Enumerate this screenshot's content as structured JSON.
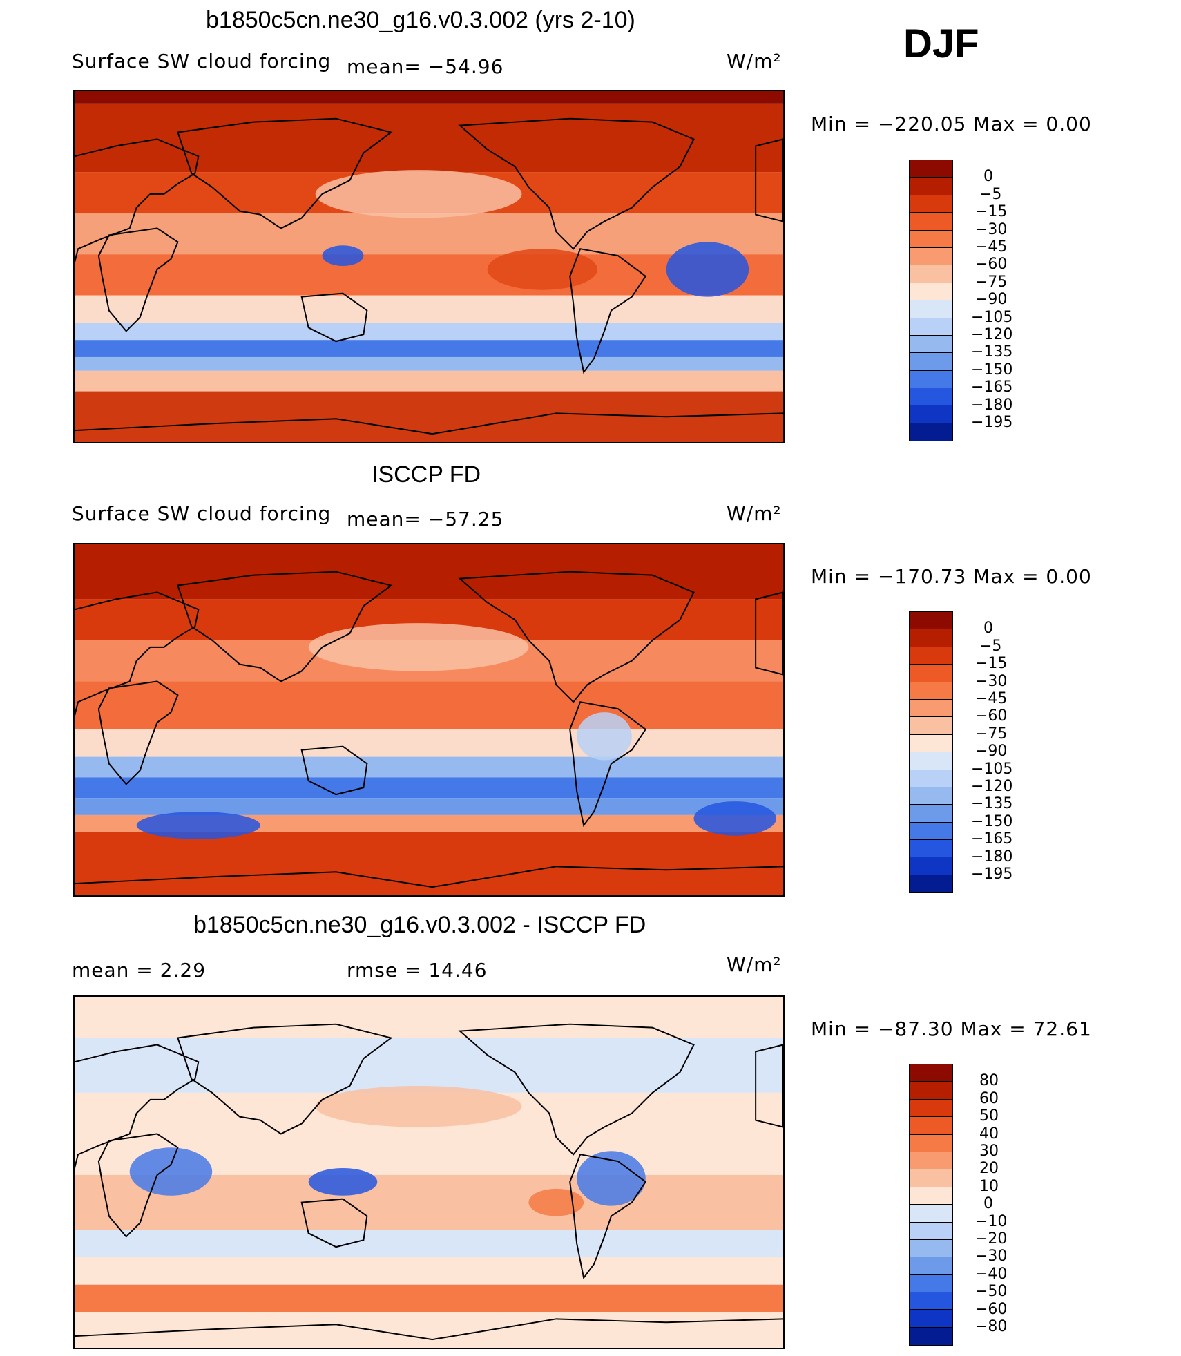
{
  "djf_label": "DJF",
  "panels": [
    {
      "title": "b1850c5cn.ne30_g16.v0.3.002 (yrs 2-10)",
      "left_label": "Surface SW cloud forcing",
      "mid_label": "mean= −54.96",
      "units": "W/m²",
      "minmax": "Min = −220.05 Max = 0.00",
      "colorbar_ticks": [
        "0",
        "−5",
        "−15",
        "−30",
        "−45",
        "−60",
        "−75",
        "−90",
        "−105",
        "−120",
        "−135",
        "−150",
        "−165",
        "−180",
        "−195"
      ],
      "colorbar_colors": [
        "#8c0a00",
        "#b51f00",
        "#d93a0d",
        "#ee5a26",
        "#f57a45",
        "#f89b70",
        "#f9c0a2",
        "#fde6d6",
        "#d8e6f8",
        "#b9d1f6",
        "#96b9f0",
        "#6d9bea",
        "#4679e8",
        "#2456e0",
        "#0e35c4",
        "#041c92"
      ],
      "map_theme": "model",
      "chart_data": {
        "type": "heatmap",
        "mean": -54.96,
        "min": -220.05,
        "max": 0.0,
        "levels": [
          0,
          -5,
          -15,
          -30,
          -45,
          -60,
          -75,
          -90,
          -105,
          -120,
          -135,
          -150,
          -165,
          -180,
          -195
        ]
      }
    },
    {
      "title": "ISCCP FD",
      "left_label": "Surface SW cloud forcing",
      "mid_label": "mean= −57.25",
      "units": "W/m²",
      "minmax": "Min = −170.73 Max = 0.00",
      "colorbar_ticks": [
        "0",
        "−5",
        "−15",
        "−30",
        "−45",
        "−60",
        "−75",
        "−90",
        "−105",
        "−120",
        "−135",
        "−150",
        "−165",
        "−180",
        "−195"
      ],
      "colorbar_colors": [
        "#8c0a00",
        "#b51f00",
        "#d93a0d",
        "#ee5a26",
        "#f57a45",
        "#f89b70",
        "#f9c0a2",
        "#fde6d6",
        "#d8e6f8",
        "#b9d1f6",
        "#96b9f0",
        "#6d9bea",
        "#4679e8",
        "#2456e0",
        "#0e35c4",
        "#041c92"
      ],
      "map_theme": "obs",
      "chart_data": {
        "type": "heatmap",
        "mean": -57.25,
        "min": -170.73,
        "max": 0.0,
        "levels": [
          0,
          -5,
          -15,
          -30,
          -45,
          -60,
          -75,
          -90,
          -105,
          -120,
          -135,
          -150,
          -165,
          -180,
          -195
        ]
      }
    },
    {
      "title": "b1850c5cn.ne30_g16.v0.3.002 - ISCCP FD",
      "left_label": "mean = 2.29",
      "mid_label": "rmse = 14.46",
      "units": "W/m²",
      "minmax": "Min = −87.30 Max = 72.61",
      "colorbar_ticks": [
        "80",
        "60",
        "50",
        "40",
        "30",
        "20",
        "10",
        "0",
        "−10",
        "−20",
        "−30",
        "−40",
        "−50",
        "−60",
        "−80"
      ],
      "colorbar_colors": [
        "#8c0a00",
        "#b51f00",
        "#d93a0d",
        "#ee5a26",
        "#f57a45",
        "#f89b70",
        "#f9c0a2",
        "#fde6d6",
        "#d8e6f8",
        "#b9d1f6",
        "#96b9f0",
        "#6d9bea",
        "#4679e8",
        "#2456e0",
        "#0e35c4",
        "#041c92"
      ],
      "map_theme": "diff",
      "chart_data": {
        "type": "heatmap",
        "mean": 2.29,
        "rmse": 14.46,
        "min": -87.3,
        "max": 72.61,
        "levels": [
          80,
          60,
          50,
          40,
          30,
          20,
          10,
          0,
          -10,
          -20,
          -30,
          -40,
          -50,
          -60,
          -80
        ]
      }
    }
  ]
}
